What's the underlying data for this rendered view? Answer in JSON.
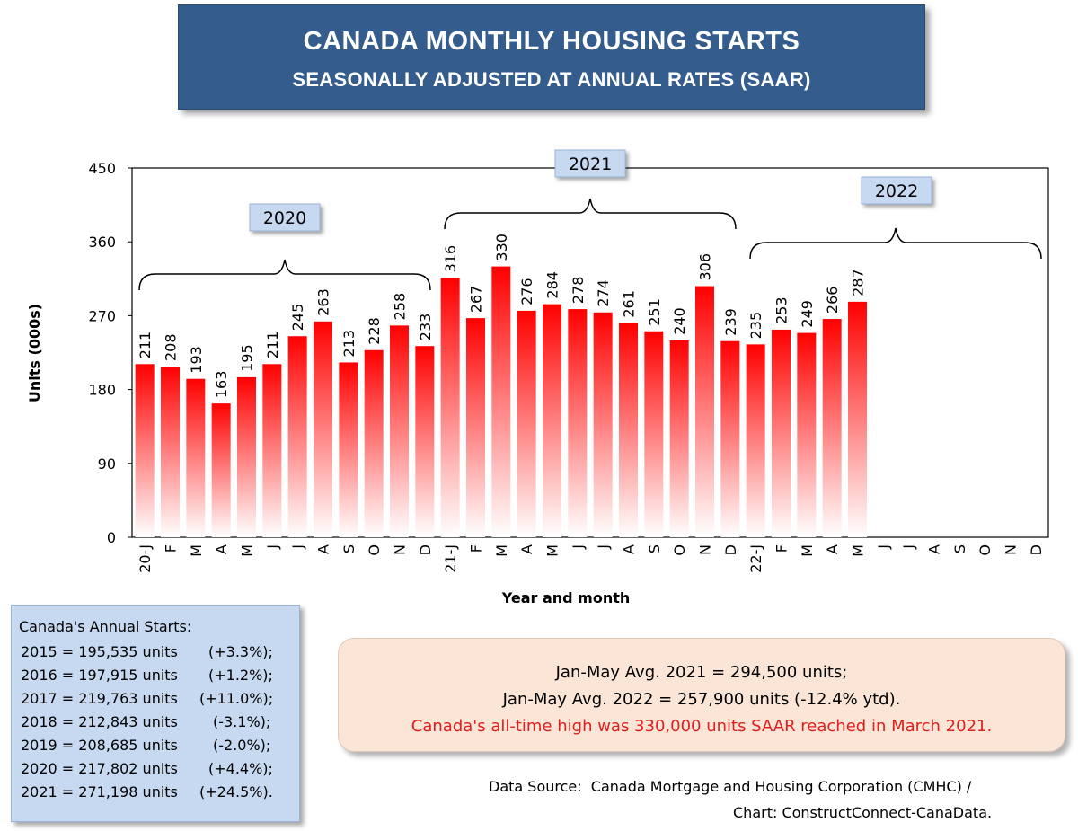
{
  "title": "CANADA MONTHLY HOUSING STARTS",
  "subtitle": "SEASONALLY ADJUSTED AT ANNUAL RATES (SAAR)",
  "colors": {
    "bar_top": "#ff0000",
    "bar_bottom": "#ffffff",
    "title_bg": "#345c8c",
    "year_label_bg": "#c6d9f1",
    "highlight_text": "#e02020"
  },
  "chart_data": {
    "type": "bar",
    "title": "",
    "xlabel": "Year and month",
    "ylabel": "Units (000s)",
    "ylim": [
      0,
      450
    ],
    "yticks": [
      0,
      90,
      180,
      270,
      360,
      450
    ],
    "categories": [
      "20-J",
      "F",
      "M",
      "A",
      "M",
      "J",
      "J",
      "A",
      "S",
      "O",
      "N",
      "D",
      "21-J",
      "F",
      "M",
      "A",
      "M",
      "J",
      "J",
      "A",
      "S",
      "O",
      "N",
      "D",
      "22-J",
      "F",
      "M",
      "A",
      "M",
      "J",
      "J",
      "A",
      "S",
      "O",
      "N",
      "D"
    ],
    "values": [
      211,
      208,
      193,
      163,
      195,
      211,
      245,
      263,
      213,
      228,
      258,
      233,
      316,
      267,
      330,
      276,
      284,
      278,
      274,
      261,
      251,
      240,
      306,
      239,
      235,
      253,
      249,
      266,
      287,
      null,
      null,
      null,
      null,
      null,
      null,
      null
    ],
    "year_groups": [
      {
        "label": "2020",
        "first_index": 0,
        "last_index": 11
      },
      {
        "label": "2021",
        "first_index": 12,
        "last_index": 23
      },
      {
        "label": "2022",
        "first_index": 24,
        "last_index": 35
      }
    ],
    "grid": false,
    "legend": "none"
  },
  "annual_box": {
    "title": "Canada's Annual Starts:",
    "lines": [
      {
        "text": "2015 = 195,535 units",
        "pct": "(+3.3%);"
      },
      {
        "text": "2016 = 197,915 units",
        "pct": "(+1.2%);"
      },
      {
        "text": "2017 = 219,763 units",
        "pct": "(+11.0%);"
      },
      {
        "text": "2018 = 212,843 units",
        "pct": "(-3.1%);"
      },
      {
        "text": "2019 = 208,685 units",
        "pct": "(-2.0%);"
      },
      {
        "text": "2020 = 217,802 units",
        "pct": "(+4.4%);"
      },
      {
        "text": "2021 = 271,198 units",
        "pct": "(+24.5%)."
      }
    ]
  },
  "avg_box": {
    "line1": "Jan-May Avg. 2021 = 294,500 units;",
    "line2": "Jan-May Avg. 2022 = 257,900 units (-12.4% ytd).",
    "line3": "Canada's all-time high was 330,000 units SAAR reached in March 2021."
  },
  "source": {
    "line1": "Data Source:  Canada Mortgage and Housing Corporation (CMHC) /",
    "line2": "Chart: ConstructConnect-CanaData."
  }
}
